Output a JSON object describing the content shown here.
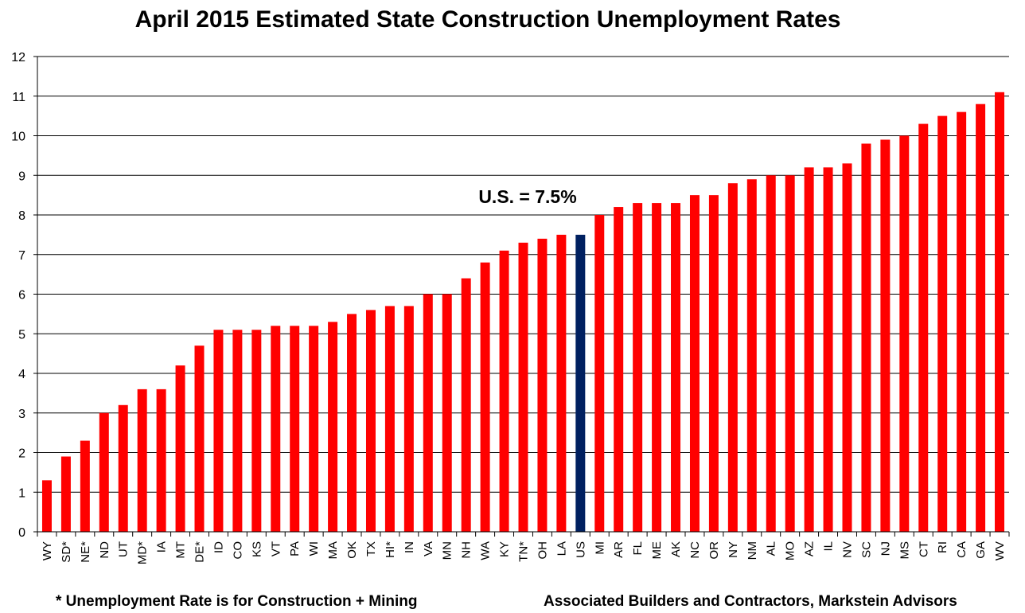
{
  "chart_data": {
    "type": "bar",
    "title": "April 2015 Estimated State Construction Unemployment Rates",
    "categories": [
      "WY",
      "SD*",
      "NE*",
      "ND",
      "UT",
      "MD*",
      "IA",
      "MT",
      "DE*",
      "ID",
      "CO",
      "KS",
      "VT",
      "PA",
      "WI",
      "MA",
      "OK",
      "TX",
      "HI*",
      "IN",
      "VA",
      "MN",
      "NH",
      "WA",
      "KY",
      "TN*",
      "OH",
      "LA",
      "US",
      "MI",
      "AR",
      "FL",
      "ME",
      "AK",
      "NC",
      "OR",
      "NY",
      "NM",
      "AL",
      "MO",
      "AZ",
      "IL",
      "NV",
      "SC",
      "NJ",
      "MS",
      "CT",
      "RI",
      "CA",
      "GA",
      "WV"
    ],
    "values": [
      1.3,
      1.9,
      2.3,
      3.0,
      3.2,
      3.6,
      3.6,
      4.2,
      4.7,
      5.1,
      5.1,
      5.1,
      5.2,
      5.2,
      5.2,
      5.3,
      5.5,
      5.6,
      5.7,
      5.7,
      6.0,
      6.0,
      6.4,
      6.8,
      7.1,
      7.3,
      7.4,
      7.5,
      7.5,
      8.0,
      8.2,
      8.3,
      8.3,
      8.3,
      8.5,
      8.5,
      8.8,
      8.9,
      9.0,
      9.0,
      9.2,
      9.2,
      9.3,
      9.8,
      9.9,
      10.0,
      10.3,
      10.5,
      10.6,
      10.8,
      11.1
    ],
    "highlight_category": "US",
    "ylim": [
      0,
      12
    ],
    "yticks": [
      0,
      1,
      2,
      3,
      4,
      5,
      6,
      7,
      8,
      9,
      10,
      11,
      12
    ],
    "grid": true,
    "annotation": "U.S. = 7.5%",
    "colors": {
      "bar": "#ff0000",
      "highlight": "#002060",
      "grid": "#000000"
    }
  },
  "footnotes": {
    "left": "* Unemployment Rate is for Construction + Mining",
    "right": "Associated Builders and Contractors, Markstein Advisors"
  }
}
